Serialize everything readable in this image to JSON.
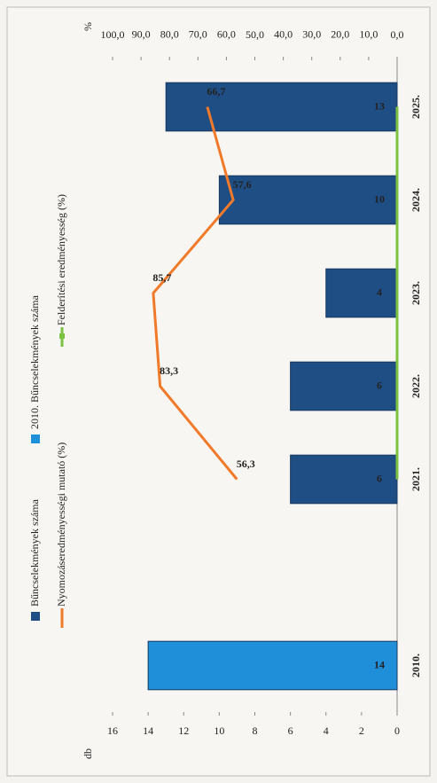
{
  "chart_data": {
    "type": "bar",
    "categories": [
      "2010.",
      null,
      "2021.",
      "2022.",
      "2023.",
      "2024.",
      "2025."
    ],
    "series": [
      {
        "name": "Bűncselekmények száma",
        "type": "bar",
        "color": "#1f4e85",
        "values": [
          null,
          null,
          6,
          6,
          4,
          10,
          13
        ]
      },
      {
        "name": "2010. Bűncselekmények száma",
        "type": "bar",
        "color": "#1e8fd8",
        "values": [
          14,
          null,
          null,
          null,
          null,
          null,
          null
        ]
      },
      {
        "name": "Nyomozáseredményességi mutató (%)",
        "type": "line",
        "axis": "y2",
        "color": "#f07a2a",
        "values": [
          null,
          null,
          56.3,
          83.3,
          85.7,
          57.6,
          66.7
        ],
        "value_labels": [
          null,
          null,
          "56,3",
          "83,3",
          "85,7",
          "57,6",
          "66,7"
        ]
      },
      {
        "name": "Felderítési eredményesség (%)",
        "type": "line",
        "axis": "y2",
        "color": "#7cc242",
        "values": [
          null,
          null,
          0,
          0,
          0,
          0,
          0
        ]
      }
    ],
    "ylabel": "db",
    "y2label": "%",
    "ylim": [
      0,
      16
    ],
    "yticks": [
      0,
      2,
      4,
      6,
      8,
      10,
      12,
      14,
      16
    ],
    "y2lim": [
      0,
      100
    ],
    "y2ticks": [
      {
        "value": 0,
        "label": "0,0"
      },
      {
        "value": 10,
        "label": "10,0"
      },
      {
        "value": 20,
        "label": "20,0"
      },
      {
        "value": 30,
        "label": "30,0"
      },
      {
        "value": 40,
        "label": "40,0"
      },
      {
        "value": 50,
        "label": "50,0"
      },
      {
        "value": 60,
        "label": "60,0"
      },
      {
        "value": 70,
        "label": "70,0"
      },
      {
        "value": 80,
        "label": "80,0"
      },
      {
        "value": 90,
        "label": "90,0"
      },
      {
        "value": 100,
        "label": "100,0"
      }
    ],
    "legend": "top"
  }
}
